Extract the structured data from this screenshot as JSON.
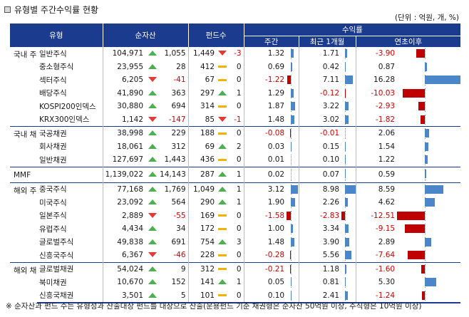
{
  "title": "유형별 주간수익률 현황",
  "unit": "(단위 : 억원, 개, %)",
  "headers": {
    "type": "유형",
    "aum": "순자산",
    "funds": "펀드수",
    "returns": "수익률",
    "week": "주간",
    "month": "최근 1개월",
    "ytd": "연초이후"
  },
  "colors": {
    "header": "#1b3b8f",
    "positive_bar": "#4a86c8",
    "negative_bar": "#c00000",
    "up": "#4caf50",
    "down": "#e53935",
    "flat": "#f0b400"
  },
  "groups": [
    {
      "category": "국내 주식",
      "rows": [
        {
          "type": "일반주식",
          "aum": "104,971",
          "aum_dir": "up",
          "aum_chg": "1,055",
          "funds": "1,449",
          "funds_dir": "down",
          "funds_chg": "-3",
          "week": 1.32,
          "month": 1.71,
          "ytd": -3.9,
          "week_label": "1.32",
          "month_label": "1.71",
          "ytd_label": "-3.90"
        },
        {
          "type": "중소형주식",
          "aum": "23,955",
          "aum_dir": "up",
          "aum_chg": "28",
          "funds": "412",
          "funds_dir": "flat",
          "funds_chg": "0",
          "week": 0.69,
          "month": 0.42,
          "ytd": 0.87,
          "week_label": "0.69",
          "month_label": "0.42",
          "ytd_label": "0.87"
        },
        {
          "type": "섹터주식",
          "aum": "6,205",
          "aum_dir": "down",
          "aum_chg": "-41",
          "funds": "67",
          "funds_dir": "flat",
          "funds_chg": "0",
          "week": -1.22,
          "month": 7.11,
          "ytd": 16.28,
          "week_label": "-1.22",
          "month_label": "7.11",
          "ytd_label": "16.28"
        },
        {
          "type": "배당주식",
          "aum": "41,890",
          "aum_dir": "up",
          "aum_chg": "363",
          "funds": "297",
          "funds_dir": "up",
          "funds_chg": "1",
          "week": 1.29,
          "month": -0.12,
          "ytd": -10.03,
          "week_label": "1.29",
          "month_label": "-0.12",
          "ytd_label": "-10.03"
        },
        {
          "type": "KOSPI200인덱스",
          "aum": "30,880",
          "aum_dir": "up",
          "aum_chg": "694",
          "funds": "314",
          "funds_dir": "flat",
          "funds_chg": "0",
          "week": 1.87,
          "month": 3.22,
          "ytd": -2.93,
          "week_label": "1.87",
          "month_label": "3.22",
          "ytd_label": "-2.93"
        },
        {
          "type": "KRX300인덱스",
          "aum": "1,142",
          "aum_dir": "down",
          "aum_chg": "-147",
          "funds": "85",
          "funds_dir": "down",
          "funds_chg": "-1",
          "week": 1.48,
          "month": 3.02,
          "ytd": -1.82,
          "week_label": "1.48",
          "month_label": "3.02",
          "ytd_label": "-1.82"
        }
      ]
    },
    {
      "category": "국내 채권",
      "rows": [
        {
          "type": "국공채권",
          "aum": "38,998",
          "aum_dir": "up",
          "aum_chg": "229",
          "funds": "188",
          "funds_dir": "flat",
          "funds_chg": "0",
          "week": -0.08,
          "month": -0.01,
          "ytd": 2.06,
          "week_label": "-0.08",
          "month_label": "-0.01",
          "ytd_label": "2.06"
        },
        {
          "type": "회사채권",
          "aum": "18,061",
          "aum_dir": "up",
          "aum_chg": "312",
          "funds": "69",
          "funds_dir": "up",
          "funds_chg": "2",
          "week": 0.03,
          "month": 0.15,
          "ytd": 1.54,
          "week_label": "0.03",
          "month_label": "0.15",
          "ytd_label": "1.54"
        },
        {
          "type": "일반채권",
          "aum": "127,697",
          "aum_dir": "up",
          "aum_chg": "1,443",
          "funds": "436",
          "funds_dir": "flat",
          "funds_chg": "0",
          "week": 0.01,
          "month": 0.1,
          "ytd": 1.22,
          "week_label": "0.01",
          "month_label": "0.10",
          "ytd_label": "1.22"
        }
      ]
    },
    {
      "category": "MMF",
      "rows": [
        {
          "type": "",
          "aum": "1,139,022",
          "aum_dir": "up",
          "aum_chg": "14,143",
          "funds": "287",
          "funds_dir": "up",
          "funds_chg": "1",
          "week": 0.02,
          "month": 0.07,
          "ytd": 0.59,
          "week_label": "0.02",
          "month_label": "0.07",
          "ytd_label": "0.59"
        }
      ]
    },
    {
      "category": "해외 주식",
      "rows": [
        {
          "type": "중국주식",
          "aum": "77,168",
          "aum_dir": "up",
          "aum_chg": "1,769",
          "funds": "1,049",
          "funds_dir": "up",
          "funds_chg": "1",
          "week": 3.12,
          "month": 8.98,
          "ytd": 8.59,
          "week_label": "3.12",
          "month_label": "8.98",
          "ytd_label": "8.59"
        },
        {
          "type": "미국주식",
          "aum": "23,092",
          "aum_dir": "up",
          "aum_chg": "564",
          "funds": "290",
          "funds_dir": "up",
          "funds_chg": "1",
          "week": 1.9,
          "month": 2.26,
          "ytd": 4.62,
          "week_label": "1.90",
          "month_label": "2.26",
          "ytd_label": "4.62"
        },
        {
          "type": "일본주식",
          "aum": "2,889",
          "aum_dir": "down",
          "aum_chg": "-55",
          "funds": "169",
          "funds_dir": "flat",
          "funds_chg": "0",
          "week": -1.58,
          "month": -2.83,
          "ytd": -12.51,
          "week_label": "-1.58",
          "month_label": "-2.83",
          "ytd_label": "-12.51"
        },
        {
          "type": "유럽주식",
          "aum": "4,434",
          "aum_dir": "up",
          "aum_chg": "34",
          "funds": "172",
          "funds_dir": "flat",
          "funds_chg": "0",
          "week": 1.0,
          "month": 3.34,
          "ytd": -9.15,
          "week_label": "1.00",
          "month_label": "3.34",
          "ytd_label": "-9.15"
        },
        {
          "type": "글로벌주식",
          "aum": "49,838",
          "aum_dir": "up",
          "aum_chg": "691",
          "funds": "754",
          "funds_dir": "up",
          "funds_chg": "3",
          "week": 1.48,
          "month": 3.9,
          "ytd": 2.89,
          "week_label": "1.48",
          "month_label": "3.90",
          "ytd_label": "2.89"
        },
        {
          "type": "신흥국주식",
          "aum": "6,367",
          "aum_dir": "down",
          "aum_chg": "-46",
          "funds": "228",
          "funds_dir": "flat",
          "funds_chg": "0",
          "week": -0.28,
          "month": 5.56,
          "ytd": -7.64,
          "week_label": "-0.28",
          "month_label": "5.56",
          "ytd_label": "-7.64"
        }
      ]
    },
    {
      "category": "해외 채권",
      "rows": [
        {
          "type": "글로벌채권",
          "aum": "54,024",
          "aum_dir": "up",
          "aum_chg": "9",
          "funds": "312",
          "funds_dir": "flat",
          "funds_chg": "0",
          "week": -0.21,
          "month": 1.18,
          "ytd": -1.6,
          "week_label": "-0.21",
          "month_label": "1.18",
          "ytd_label": "-1.60"
        },
        {
          "type": "북미채권",
          "aum": "10,670",
          "aum_dir": "up",
          "aum_chg": "152",
          "funds": "141",
          "funds_dir": "up",
          "funds_chg": "1",
          "week": 0.05,
          "month": 0.81,
          "ytd": 5.3,
          "week_label": "0.05",
          "month_label": "0.81",
          "ytd_label": "5.30"
        },
        {
          "type": "신흥국채권",
          "aum": "3,501",
          "aum_dir": "up",
          "aum_chg": "5",
          "funds": "101",
          "funds_dir": "flat",
          "funds_chg": "0",
          "week": 0.1,
          "month": 2.41,
          "ytd": -1.24,
          "week_label": "0.10",
          "month_label": "2.41",
          "ytd_label": "-1.24"
        }
      ]
    }
  ],
  "footnote": "※ 순자산과 펀드 수는 유형성과 산출대상 펀드를 대상으로 산출(운용펀드 기준 채권형은 순자산 50억원 이상, 주식형은 10억원 이상)"
}
